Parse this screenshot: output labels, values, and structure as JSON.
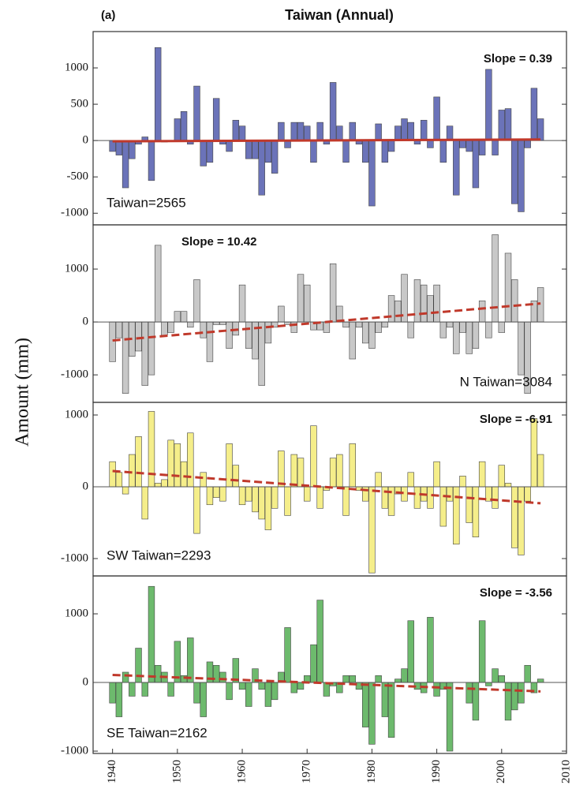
{
  "panel_label": "(a)",
  "title": "Taiwan (Annual)",
  "y_label": "Amount (mm)",
  "chart_data": [
    {
      "type": "bar",
      "label": "Taiwan=2565",
      "annotation": "Slope = 0.39",
      "color": "#6b73b9",
      "x": [
        1940,
        1941,
        1942,
        1943,
        1944,
        1945,
        1946,
        1947,
        1948,
        1949,
        1950,
        1951,
        1952,
        1953,
        1954,
        1955,
        1956,
        1957,
        1958,
        1959,
        1960,
        1961,
        1962,
        1963,
        1964,
        1965,
        1966,
        1967,
        1968,
        1969,
        1970,
        1971,
        1972,
        1973,
        1974,
        1975,
        1976,
        1977,
        1978,
        1979,
        1980,
        1981,
        1982,
        1983,
        1984,
        1985,
        1986,
        1987,
        1988,
        1989,
        1990,
        1991,
        1992,
        1993,
        1994,
        1995,
        1996,
        1997,
        1998,
        1999,
        2000,
        2001,
        2002,
        2003,
        2004,
        2005,
        2006
      ],
      "values": [
        -150,
        -200,
        -650,
        -250,
        -50,
        50,
        -550,
        1280,
        -20,
        -10,
        300,
        400,
        -50,
        750,
        -350,
        -300,
        580,
        -50,
        -150,
        280,
        200,
        -250,
        -250,
        -750,
        -300,
        -450,
        250,
        -100,
        250,
        250,
        200,
        -300,
        250,
        -50,
        800,
        200,
        -300,
        250,
        -50,
        -300,
        -900,
        230,
        -300,
        -150,
        200,
        300,
        250,
        -50,
        280,
        -100,
        600,
        -300,
        200,
        -750,
        -100,
        -150,
        -650,
        -200,
        980,
        -200,
        420,
        440,
        -870,
        -980,
        -100,
        720,
        300
      ],
      "trend": {
        "x": [
          1940,
          2006
        ],
        "values": [
          -10,
          15
        ],
        "color": "#c0392b"
      },
      "xlim": [
        1937,
        2010
      ],
      "ylim": [
        -1160,
        1500
      ],
      "yticks": [
        -1000,
        -500,
        0,
        500,
        1000
      ]
    },
    {
      "type": "bar",
      "label": "N Taiwan=3084",
      "annotation": "Slope = 10.42",
      "color": "#c8c8c8",
      "x": [
        1940,
        1941,
        1942,
        1943,
        1944,
        1945,
        1946,
        1947,
        1948,
        1949,
        1950,
        1951,
        1952,
        1953,
        1954,
        1955,
        1956,
        1957,
        1958,
        1959,
        1960,
        1961,
        1962,
        1963,
        1964,
        1965,
        1966,
        1967,
        1968,
        1969,
        1970,
        1971,
        1972,
        1973,
        1974,
        1975,
        1976,
        1977,
        1978,
        1979,
        1980,
        1981,
        1982,
        1983,
        1984,
        1985,
        1986,
        1987,
        1988,
        1989,
        1990,
        1991,
        1992,
        1993,
        1994,
        1995,
        1996,
        1997,
        1998,
        1999,
        2000,
        2001,
        2002,
        2003,
        2004,
        2005,
        2006
      ],
      "values": [
        -750,
        -300,
        -1350,
        -650,
        -550,
        -1200,
        -1000,
        1450,
        -250,
        -200,
        200,
        200,
        -100,
        800,
        -300,
        -750,
        -50,
        -50,
        -500,
        -250,
        700,
        -500,
        -700,
        -1200,
        -400,
        -100,
        300,
        -50,
        -200,
        900,
        700,
        -150,
        -150,
        -200,
        1100,
        300,
        -100,
        -700,
        -100,
        -400,
        -500,
        -200,
        -100,
        500,
        400,
        900,
        -300,
        800,
        700,
        500,
        700,
        -300,
        -100,
        -600,
        -200,
        -600,
        -500,
        400,
        -300,
        1650,
        -200,
        1300,
        800,
        -1000,
        -1350,
        400,
        650
      ],
      "trend": {
        "x": [
          1940,
          2006
        ],
        "values": [
          -350,
          350
        ],
        "color": "#c0392b"
      },
      "xlim": [
        1937,
        2010
      ],
      "ylim": [
        -1520,
        1836
      ],
      "yticks": [
        -1000,
        0,
        1000
      ]
    },
    {
      "type": "bar",
      "label": "SW Taiwan=2293",
      "annotation": "Slope = -6.91",
      "color": "#f5ee8a",
      "x": [
        1940,
        1941,
        1942,
        1943,
        1944,
        1945,
        1946,
        1947,
        1948,
        1949,
        1950,
        1951,
        1952,
        1953,
        1954,
        1955,
        1956,
        1957,
        1958,
        1959,
        1960,
        1961,
        1962,
        1963,
        1964,
        1965,
        1966,
        1967,
        1968,
        1969,
        1970,
        1971,
        1972,
        1973,
        1974,
        1975,
        1976,
        1977,
        1978,
        1979,
        1980,
        1981,
        1982,
        1983,
        1984,
        1985,
        1986,
        1987,
        1988,
        1989,
        1990,
        1991,
        1992,
        1993,
        1994,
        1995,
        1996,
        1997,
        1998,
        1999,
        2000,
        2001,
        2002,
        2003,
        2004,
        2005,
        2006
      ],
      "values": [
        350,
        200,
        -100,
        450,
        700,
        -450,
        1050,
        50,
        100,
        650,
        600,
        350,
        750,
        -650,
        200,
        -250,
        -150,
        -200,
        600,
        300,
        -250,
        -200,
        -350,
        -450,
        -600,
        -300,
        500,
        -400,
        450,
        400,
        -200,
        850,
        -300,
        -50,
        400,
        450,
        -400,
        600,
        -50,
        -200,
        -1200,
        200,
        -300,
        -400,
        -100,
        -200,
        200,
        -300,
        -200,
        -300,
        350,
        -550,
        -200,
        -800,
        150,
        -500,
        -700,
        350,
        -200,
        -300,
        300,
        50,
        -850,
        -950,
        -200,
        950,
        450
      ],
      "trend": {
        "x": [
          1940,
          2006
        ],
        "values": [
          220,
          -230
        ],
        "color": "#c0392b"
      },
      "xlim": [
        1937,
        2010
      ],
      "ylim": [
        -1242,
        1176
      ],
      "yticks": [
        -1000,
        0,
        1000
      ]
    },
    {
      "type": "bar",
      "label": "SE Taiwan=2162",
      "annotation": "Slope = -3.56",
      "color": "#6dba6d",
      "x": [
        1940,
        1941,
        1942,
        1943,
        1944,
        1945,
        1946,
        1947,
        1948,
        1949,
        1950,
        1951,
        1952,
        1953,
        1954,
        1955,
        1956,
        1957,
        1958,
        1959,
        1960,
        1961,
        1962,
        1963,
        1964,
        1965,
        1966,
        1967,
        1968,
        1969,
        1970,
        1971,
        1972,
        1973,
        1974,
        1975,
        1976,
        1977,
        1978,
        1979,
        1980,
        1981,
        1982,
        1983,
        1984,
        1985,
        1986,
        1987,
        1988,
        1989,
        1990,
        1991,
        1992,
        1993,
        1994,
        1995,
        1996,
        1997,
        1998,
        1999,
        2000,
        2001,
        2002,
        2003,
        2004,
        2005,
        2006
      ],
      "values": [
        -300,
        -500,
        150,
        -200,
        500,
        -200,
        1400,
        250,
        150,
        -200,
        600,
        100,
        650,
        -300,
        -500,
        300,
        250,
        150,
        -250,
        350,
        -100,
        -350,
        200,
        -100,
        -350,
        -250,
        150,
        800,
        -150,
        -100,
        100,
        550,
        1200,
        -200,
        -50,
        -150,
        100,
        100,
        -100,
        -650,
        -900,
        100,
        -500,
        -800,
        50,
        200,
        900,
        -100,
        -150,
        950,
        -200,
        -100,
        -1000,
        0,
        0,
        -300,
        -550,
        900,
        -50,
        200,
        100,
        -550,
        -400,
        -300,
        250,
        -150,
        50
      ],
      "trend": {
        "x": [
          1940,
          2006
        ],
        "values": [
          110,
          -130
        ],
        "color": "#c0392b"
      },
      "xlim": [
        1937,
        2010
      ],
      "ylim": [
        -1034,
        1552
      ],
      "yticks": [
        -1000,
        0,
        1000
      ],
      "xticks": [
        1940,
        1950,
        1960,
        1970,
        1980,
        1990,
        2000,
        2010
      ]
    }
  ]
}
